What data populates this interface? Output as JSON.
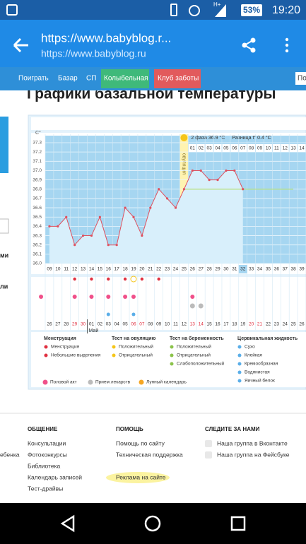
{
  "status_bar": {
    "network": "H+",
    "battery": "53%",
    "time": "19:20"
  },
  "browser": {
    "title": "https://www.babyblog.r...",
    "url": "https://www.babyblog.ru"
  },
  "nav": [
    "Поиграть",
    "Базар",
    "СП",
    "Колыбельная",
    "Клуб заботы"
  ],
  "nav_right": "По",
  "page_title": "Графики базальной температуры",
  "sidebar": [
    "ми",
    "ли"
  ],
  "chart": {
    "axis_label": "C°",
    "phase_info": "2 фаза 36.9 °C",
    "difference": "Разница t° 0.4 °C",
    "ovulation_label": "овуляция",
    "ylim": [
      36.0,
      37.3
    ],
    "yticks": [
      {
        "value": 36.0,
        "label": "36.0"
      },
      36.1,
      36.2,
      36.3,
      36.4,
      36.5,
      36.6,
      36.7,
      36.8,
      36.9,
      {
        "value": 37.0,
        "label": "37.0"
      },
      37.1,
      37.2,
      37.3
    ],
    "cover_line": 36.8,
    "days": [
      "09",
      "10",
      "11",
      "12",
      "13",
      "14",
      "15",
      "16",
      "17",
      "18",
      "19",
      "20",
      "21",
      "22",
      "23",
      "24",
      "25",
      "26",
      "27",
      "28",
      "29",
      "30",
      "31",
      "32",
      "33",
      "34",
      "35",
      "36",
      "37",
      "38",
      "39"
    ],
    "phase_days": [
      null,
      null,
      null,
      null,
      null,
      null,
      null,
      null,
      null,
      null,
      null,
      null,
      null,
      null,
      null,
      null,
      null,
      "01",
      "02",
      "03",
      "04",
      "05",
      "06",
      "07",
      "08",
      "09",
      "10",
      "11",
      "12",
      "13",
      "14"
    ],
    "dates": [
      "26",
      "27",
      "28",
      "29",
      "30",
      "01",
      "02",
      "03",
      "04",
      "05",
      "06",
      "07",
      "08",
      "09",
      "10",
      "11",
      "12",
      "13",
      "14",
      "15",
      "16",
      "17",
      "18",
      "19",
      "20",
      "21",
      "22",
      "23",
      "24",
      "25",
      "26"
    ],
    "month": "Май",
    "values": [
      36.4,
      36.4,
      36.5,
      36.2,
      36.3,
      36.3,
      36.5,
      36.2,
      36.2,
      36.6,
      36.5,
      36.3,
      36.6,
      36.8,
      36.7,
      36.6,
      36.8,
      37.0,
      37.0,
      36.9,
      36.9,
      37.0,
      37.0,
      36.8,
      null,
      null,
      null,
      null,
      null,
      null,
      null
    ],
    "color": "#e0505e"
  },
  "legend": {
    "groups": [
      {
        "title": "Менструация",
        "items": [
          "Менструация",
          "Небольшие выделения"
        ]
      },
      {
        "title": "Тест на овуляцию",
        "items": [
          "Положительный",
          "Отрицательный"
        ]
      },
      {
        "title": "Тест на беременность",
        "items": [
          "Положительный",
          "Отрицательный",
          "Слабоположительный"
        ]
      },
      {
        "title": "Цервикальная жидкость",
        "items": [
          "Сухо",
          "Клейкая",
          "Кремообразная",
          "Водянистая",
          "Яичный белок"
        ]
      }
    ],
    "extra": [
      "Половой акт",
      "Прием лекарств",
      "Лунный календарь"
    ]
  },
  "footer": {
    "left_clipped": "ебенка",
    "columns": [
      {
        "title": "ОБЩЕНИЕ",
        "items": [
          "Консультации",
          "Фотоконкурсы",
          "Библиотека",
          "Календарь записей",
          "Тест-драйвы"
        ]
      },
      {
        "title": "ПОМОЩЬ",
        "items": [
          "Помощь по сайту",
          "Техническая поддержка",
          "Реклама на сайте"
        ]
      },
      {
        "title": "СЛЕДИТЕ ЗА НАМИ",
        "items": [
          "Наша группа в Вконтакте",
          "Наша группа на Фейсбуке"
        ]
      }
    ]
  }
}
